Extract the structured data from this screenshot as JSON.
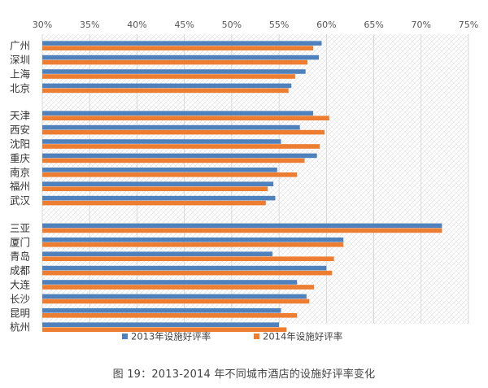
{
  "chart_data": {
    "type": "bar",
    "orientation": "horizontal",
    "xlim": [
      30,
      75
    ],
    "x_ticks": [
      "30%",
      "35%",
      "40%",
      "45%",
      "50%",
      "55%",
      "60%",
      "65%",
      "70%",
      "75%"
    ],
    "x_tick_values": [
      30,
      35,
      40,
      45,
      50,
      55,
      60,
      65,
      70,
      75
    ],
    "x_axis_position": "top",
    "grid": true,
    "legend_position": "bottom",
    "groups": [
      [
        "广州",
        "深圳",
        "上海",
        "北京"
      ],
      [
        "天津",
        "西安",
        "沈阳",
        "重庆",
        "南京",
        "福州",
        "武汉"
      ],
      [
        "三亚",
        "厦门",
        "青岛",
        "成都",
        "大连",
        "长沙",
        "昆明",
        "杭州"
      ]
    ],
    "categories": [
      "广州",
      "深圳",
      "上海",
      "北京",
      "天津",
      "西安",
      "沈阳",
      "重庆",
      "南京",
      "福州",
      "武汉",
      "三亚",
      "厦门",
      "青岛",
      "成都",
      "大连",
      "长沙",
      "昆明",
      "杭州"
    ],
    "series": [
      {
        "name": "2013年设施好评率",
        "color": "#4f81bd",
        "values": [
          59.5,
          59.2,
          57.8,
          56.3,
          58.6,
          57.2,
          55.2,
          59.0,
          54.8,
          54.4,
          54.6,
          72.2,
          61.8,
          54.3,
          60.0,
          56.9,
          57.9,
          55.2,
          55.0
        ]
      },
      {
        "name": "2014年设施好评率",
        "color": "#ed7d31",
        "values": [
          58.6,
          58.0,
          56.7,
          56.0,
          60.3,
          59.8,
          59.3,
          57.7,
          56.9,
          53.8,
          53.6,
          72.2,
          61.8,
          60.8,
          60.6,
          58.7,
          58.2,
          56.9,
          55.8
        ]
      }
    ]
  },
  "caption": "图 19：2013-2014 年不同城市酒店的设施好评率变化"
}
